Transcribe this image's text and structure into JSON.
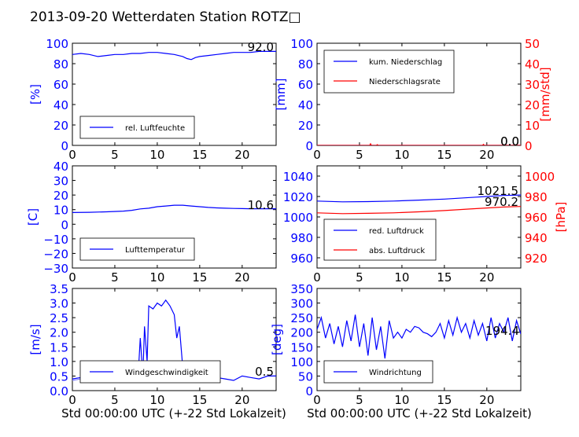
{
  "figure": {
    "title": "2013-09-20 Wetterdaten Station ROTZ□",
    "xlabel": "Std 00:00:00 UTC (+-22 Std Lokalzeit)"
  },
  "colors": {
    "blue": "#0000ff",
    "red": "#ff0000",
    "lightblue": "#8080ff",
    "axis": "#000000"
  },
  "chart_data": [
    {
      "type": "line",
      "ylabel": "[%]",
      "xlim": [
        0,
        24
      ],
      "ylim": [
        0,
        100
      ],
      "xticks": [
        "0",
        "5",
        "10",
        "15",
        "20"
      ],
      "yticks": [
        "0",
        "20",
        "40",
        "60",
        "80",
        "100"
      ],
      "legend": [
        "rel. Luftfeuchte"
      ],
      "legend_position": "lower-left",
      "annotations": [
        "92.0"
      ],
      "series": [
        {
          "name": "rel. Luftfeuchte",
          "color": "#0000ff",
          "x": [
            0,
            1,
            2,
            3,
            4,
            5,
            6,
            7,
            8,
            9,
            10,
            11,
            12,
            13,
            13.5,
            14,
            14.5,
            15,
            16,
            17,
            18,
            19,
            20,
            21,
            22,
            23,
            24
          ],
          "y": [
            89,
            90,
            89,
            87,
            88,
            89,
            89,
            90,
            90,
            91,
            91,
            90,
            89,
            87,
            85,
            84,
            86,
            87,
            88,
            89,
            90,
            91,
            91,
            91,
            92,
            92,
            92
          ]
        }
      ]
    },
    {
      "type": "line",
      "ylabel": "[mm]",
      "ylabel_right": "[mm/std]",
      "xlim": [
        0,
        24
      ],
      "ylim": [
        0,
        100
      ],
      "ylim_right": [
        0,
        50
      ],
      "xticks": [
        "0",
        "5",
        "10",
        "15",
        "20"
      ],
      "yticks": [
        "0",
        "20",
        "40",
        "60",
        "80",
        "100"
      ],
      "yticks_right": [
        "0",
        "10",
        "20",
        "30",
        "40",
        "50"
      ],
      "legend": [
        "kum. Niederschlag",
        "Niederschlagsrate"
      ],
      "legend_position": "upper-left",
      "annotations": [
        "0.0",
        "0.0"
      ],
      "series": [
        {
          "name": "kum. Niederschlag",
          "color": "#0000ff",
          "axis": "left",
          "x": [
            0,
            24
          ],
          "y": [
            0,
            0
          ]
        },
        {
          "name": "Niederschlagsrate",
          "color": "#ff0000",
          "axis": "right",
          "x": [
            0,
            6.2,
            6.3,
            6.4,
            6.5,
            7.0,
            7.1,
            7.2,
            19,
            19.5,
            19.6,
            19.7,
            24
          ],
          "y": [
            0,
            0,
            0.8,
            0,
            0,
            0,
            0.4,
            0,
            0,
            0,
            0.5,
            0,
            0
          ]
        }
      ]
    },
    {
      "type": "line",
      "ylabel": "[C]",
      "xlim": [
        0,
        24
      ],
      "ylim": [
        -30,
        40
      ],
      "xticks": [
        "0",
        "5",
        "10",
        "15",
        "20"
      ],
      "yticks": [
        "−30",
        "−20",
        "−10",
        "0",
        "10",
        "20",
        "30",
        "40"
      ],
      "legend": [
        "Lufttemperatur"
      ],
      "legend_position": "lower-left",
      "annotations": [
        "10.6"
      ],
      "series": [
        {
          "name": "Lufttemperatur",
          "color": "#0000ff",
          "x": [
            0,
            2,
            4,
            6,
            7,
            8,
            9,
            10,
            11,
            12,
            13,
            14,
            15,
            16,
            17,
            18,
            19,
            20,
            21,
            22,
            23,
            24
          ],
          "y": [
            8,
            8.2,
            8.5,
            9,
            9.5,
            10.5,
            11,
            12,
            12.5,
            13,
            13,
            12.5,
            12,
            11.5,
            11.2,
            11,
            10.8,
            10.7,
            10.6,
            10.6,
            10.6,
            10.6
          ]
        }
      ]
    },
    {
      "type": "line",
      "ylabel_right": "[hPa]",
      "xlim": [
        0,
        24
      ],
      "ylim": [
        950,
        1050
      ],
      "ylim_right": [
        910,
        1010
      ],
      "xticks": [
        "0",
        "5",
        "10",
        "15",
        "20"
      ],
      "yticks": [
        "960",
        "980",
        "1000",
        "1020",
        "1040"
      ],
      "yticks_right": [
        "920",
        "940",
        "960",
        "980",
        "1000"
      ],
      "legend": [
        "red. Luftdruck",
        "abs. Luftdruck"
      ],
      "legend_position": "lower-left",
      "annotations": [
        "1021.5",
        "970.2"
      ],
      "series": [
        {
          "name": "red. Luftdruck",
          "color": "#0000ff",
          "axis": "left",
          "x": [
            0,
            3,
            6,
            9,
            12,
            15,
            18,
            20,
            22,
            24
          ],
          "y": [
            1015.5,
            1014.8,
            1015,
            1015.5,
            1016.5,
            1017.5,
            1019,
            1020,
            1021,
            1021.5
          ]
        },
        {
          "name": "abs. Luftdruck",
          "color": "#ff0000",
          "axis": "right",
          "x": [
            0,
            3,
            6,
            9,
            12,
            15,
            18,
            20,
            22,
            24
          ],
          "y": [
            964,
            963.2,
            963.5,
            964,
            965,
            966.2,
            967.8,
            968.8,
            969.7,
            970.2
          ]
        }
      ]
    },
    {
      "type": "line",
      "ylabel": "[m/s]",
      "xlim": [
        0,
        24
      ],
      "ylim": [
        0,
        3.5
      ],
      "xticks": [
        "0",
        "5",
        "10",
        "15",
        "20"
      ],
      "yticks": [
        "0.0",
        "0.5",
        "1.0",
        "1.5",
        "2.0",
        "2.5",
        "3.0",
        "3.5"
      ],
      "legend": [
        "Windgeschwindigkeit"
      ],
      "legend_position": "lower-left",
      "annotations": [
        "0.5"
      ],
      "series": [
        {
          "name": "Windgeschwindigkeit",
          "color": "#0000ff",
          "x": [
            0,
            1,
            2,
            3,
            4,
            5,
            6,
            7,
            7.8,
            8.0,
            8.3,
            8.5,
            8.8,
            9.0,
            9.5,
            10,
            10.5,
            11,
            11.5,
            12,
            12.3,
            12.6,
            13,
            13.5,
            14,
            15,
            16,
            17,
            18,
            19,
            20,
            21,
            22,
            23,
            24
          ],
          "y": [
            0.4,
            0.45,
            0.5,
            0.4,
            0.5,
            0.55,
            0.6,
            0.7,
            0.8,
            1.8,
            0.5,
            2.2,
            1.0,
            2.9,
            2.8,
            3.0,
            2.9,
            3.1,
            2.9,
            2.6,
            1.8,
            2.2,
            0.8,
            0.6,
            0.5,
            0.45,
            0.4,
            0.45,
            0.4,
            0.35,
            0.5,
            0.45,
            0.4,
            0.5,
            0.5
          ]
        },
        {
          "name": "",
          "color": "#8080ff",
          "x": [
            0,
            1,
            2,
            3,
            4,
            5,
            6,
            6.5,
            7,
            7.5,
            8,
            8.5
          ],
          "y": [
            0.35,
            0.4,
            0.55,
            0.45,
            0.6,
            0.7,
            0.85,
            0.9,
            0.75,
            0.6,
            0.65,
            0.5
          ]
        }
      ]
    },
    {
      "type": "line",
      "ylabel": "[deg]",
      "xlim": [
        0,
        24
      ],
      "ylim": [
        0,
        350
      ],
      "xticks": [
        "0",
        "5",
        "10",
        "15",
        "20"
      ],
      "yticks": [
        "0",
        "50",
        "100",
        "150",
        "200",
        "250",
        "300",
        "350"
      ],
      "legend": [
        "Windrichtung"
      ],
      "legend_position": "lower-left",
      "annotations": [
        "194.4"
      ],
      "series": [
        {
          "name": "Windrichtung",
          "color": "#0000ff",
          "x": [
            0,
            0.5,
            1,
            1.5,
            2,
            2.5,
            3,
            3.5,
            4,
            4.5,
            5,
            5.5,
            6,
            6.5,
            7,
            7.5,
            8,
            8.5,
            9,
            9.5,
            10,
            10.5,
            11,
            11.5,
            12,
            12.5,
            13,
            13.5,
            14,
            14.5,
            15,
            15.5,
            16,
            16.5,
            17,
            17.5,
            18,
            18.5,
            19,
            19.5,
            20,
            20.5,
            21,
            21.5,
            22,
            22.5,
            23,
            23.5,
            24
          ],
          "y": [
            210,
            250,
            180,
            230,
            160,
            220,
            150,
            240,
            170,
            260,
            150,
            230,
            120,
            250,
            140,
            220,
            110,
            240,
            180,
            200,
            180,
            210,
            200,
            220,
            215,
            200,
            195,
            185,
            200,
            230,
            180,
            240,
            190,
            250,
            200,
            230,
            180,
            240,
            190,
            230,
            170,
            250,
            180,
            230,
            200,
            250,
            170,
            240,
            194
          ]
        }
      ]
    }
  ]
}
